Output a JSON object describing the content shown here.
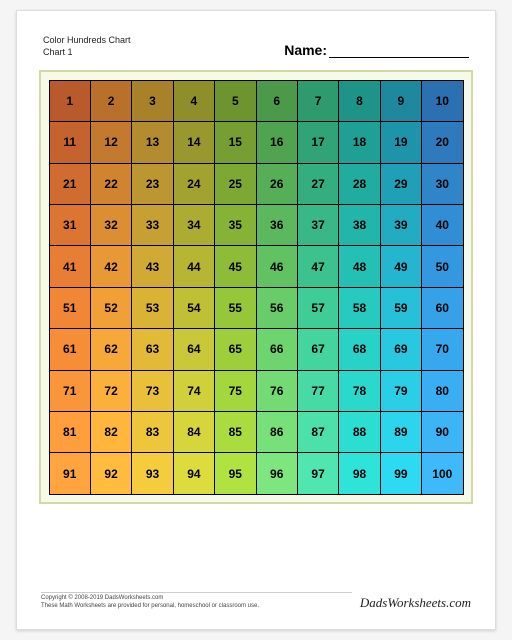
{
  "header": {
    "title_line1": "Color Hundreds Chart",
    "title_line2": "Chart 1",
    "name_label": "Name:"
  },
  "chart": {
    "type": "table",
    "rows": 10,
    "cols": 10,
    "frame_border_color": "#d4d8a8",
    "frame_bg_color": "#f8fae8",
    "cell_border_color": "#000000",
    "cell_font_size": 12,
    "cell_font_weight": "bold",
    "cells": [
      {
        "n": 1,
        "c": "#b85a2b"
      },
      {
        "n": 2,
        "c": "#b8702b"
      },
      {
        "n": 3,
        "c": "#a8822b"
      },
      {
        "n": 4,
        "c": "#8e8e2b"
      },
      {
        "n": 5,
        "c": "#6e9430"
      },
      {
        "n": 6,
        "c": "#4a9a4a"
      },
      {
        "n": 7,
        "c": "#2e9a6e"
      },
      {
        "n": 8,
        "c": "#1e9488"
      },
      {
        "n": 9,
        "c": "#1e889e"
      },
      {
        "n": 10,
        "c": "#2b70b0"
      },
      {
        "n": 11,
        "c": "#c4632e"
      },
      {
        "n": 12,
        "c": "#c47a2e"
      },
      {
        "n": 13,
        "c": "#b28c2e"
      },
      {
        "n": 14,
        "c": "#98982e"
      },
      {
        "n": 15,
        "c": "#769e32"
      },
      {
        "n": 16,
        "c": "#50a450"
      },
      {
        "n": 17,
        "c": "#30a476"
      },
      {
        "n": 18,
        "c": "#1ea094"
      },
      {
        "n": 19,
        "c": "#1e94aa"
      },
      {
        "n": 20,
        "c": "#2e7abc"
      },
      {
        "n": 21,
        "c": "#d06c30"
      },
      {
        "n": 22,
        "c": "#d08430"
      },
      {
        "n": 23,
        "c": "#bc9630"
      },
      {
        "n": 24,
        "c": "#a2a230"
      },
      {
        "n": 25,
        "c": "#7ea834"
      },
      {
        "n": 26,
        "c": "#56ae56"
      },
      {
        "n": 27,
        "c": "#34ae7e"
      },
      {
        "n": 28,
        "c": "#20ac9e"
      },
      {
        "n": 29,
        "c": "#20a0b6"
      },
      {
        "n": 30,
        "c": "#3084c8"
      },
      {
        "n": 31,
        "c": "#dc7532"
      },
      {
        "n": 32,
        "c": "#dc8e32"
      },
      {
        "n": 33,
        "c": "#c6a032"
      },
      {
        "n": 34,
        "c": "#acac32"
      },
      {
        "n": 35,
        "c": "#86b236"
      },
      {
        "n": 36,
        "c": "#5cb85c"
      },
      {
        "n": 37,
        "c": "#38b886"
      },
      {
        "n": 38,
        "c": "#22b6aa"
      },
      {
        "n": 39,
        "c": "#22acc2"
      },
      {
        "n": 40,
        "c": "#328ed4"
      },
      {
        "n": 41,
        "c": "#e87e34"
      },
      {
        "n": 42,
        "c": "#e89834"
      },
      {
        "n": 43,
        "c": "#d0aa34"
      },
      {
        "n": 44,
        "c": "#b6b634"
      },
      {
        "n": 45,
        "c": "#8ebc38"
      },
      {
        "n": 46,
        "c": "#62c262"
      },
      {
        "n": 47,
        "c": "#3cc28e"
      },
      {
        "n": 48,
        "c": "#24c0b4"
      },
      {
        "n": 49,
        "c": "#24b6ce"
      },
      {
        "n": 50,
        "c": "#3498e0"
      },
      {
        "n": 51,
        "c": "#f08636"
      },
      {
        "n": 52,
        "c": "#f0a036"
      },
      {
        "n": 53,
        "c": "#dab236"
      },
      {
        "n": 54,
        "c": "#c0c036"
      },
      {
        "n": 55,
        "c": "#96c63a"
      },
      {
        "n": 56,
        "c": "#68cc68"
      },
      {
        "n": 57,
        "c": "#40cc96"
      },
      {
        "n": 58,
        "c": "#26cabe"
      },
      {
        "n": 59,
        "c": "#26c0d8"
      },
      {
        "n": 60,
        "c": "#36a0e8"
      },
      {
        "n": 61,
        "c": "#f68e38"
      },
      {
        "n": 62,
        "c": "#f6a838"
      },
      {
        "n": 63,
        "c": "#e2ba38"
      },
      {
        "n": 64,
        "c": "#c8c838"
      },
      {
        "n": 65,
        "c": "#9ece3c"
      },
      {
        "n": 66,
        "c": "#6ed46e"
      },
      {
        "n": 67,
        "c": "#44d49e"
      },
      {
        "n": 68,
        "c": "#28d2c6"
      },
      {
        "n": 69,
        "c": "#28c8e0"
      },
      {
        "n": 70,
        "c": "#38a8ee"
      },
      {
        "n": 71,
        "c": "#fa963a"
      },
      {
        "n": 72,
        "c": "#fab03a"
      },
      {
        "n": 73,
        "c": "#e8c03a"
      },
      {
        "n": 74,
        "c": "#d0d03a"
      },
      {
        "n": 75,
        "c": "#a4d63e"
      },
      {
        "n": 76,
        "c": "#74da74"
      },
      {
        "n": 77,
        "c": "#48daa4"
      },
      {
        "n": 78,
        "c": "#2ad8cc"
      },
      {
        "n": 79,
        "c": "#2acee6"
      },
      {
        "n": 80,
        "c": "#3aaef2"
      },
      {
        "n": 81,
        "c": "#fe9e3c"
      },
      {
        "n": 82,
        "c": "#feb63c"
      },
      {
        "n": 83,
        "c": "#eec63c"
      },
      {
        "n": 84,
        "c": "#d6d63c"
      },
      {
        "n": 85,
        "c": "#aadc40"
      },
      {
        "n": 86,
        "c": "#78e078"
      },
      {
        "n": 87,
        "c": "#4ce0aa"
      },
      {
        "n": 88,
        "c": "#2cded2"
      },
      {
        "n": 89,
        "c": "#2cd4ec"
      },
      {
        "n": 90,
        "c": "#3cb4f6"
      },
      {
        "n": 91,
        "c": "#ffa43e"
      },
      {
        "n": 92,
        "c": "#ffbc3e"
      },
      {
        "n": 93,
        "c": "#f4cc3e"
      },
      {
        "n": 94,
        "c": "#dcdc3e"
      },
      {
        "n": 95,
        "c": "#b0e242"
      },
      {
        "n": 96,
        "c": "#7ee67e"
      },
      {
        "n": 97,
        "c": "#50e6b0"
      },
      {
        "n": 98,
        "c": "#2ee4d8"
      },
      {
        "n": 99,
        "c": "#2edaf2"
      },
      {
        "n": 100,
        "c": "#3ebafa"
      }
    ]
  },
  "footer": {
    "copyright": "Copyright © 2008-2019 DadsWorksheets.com",
    "tagline": "These Math Worksheets are provided for personal, homeschool or classroom use.",
    "brand": "DadsWorksheets.com"
  }
}
